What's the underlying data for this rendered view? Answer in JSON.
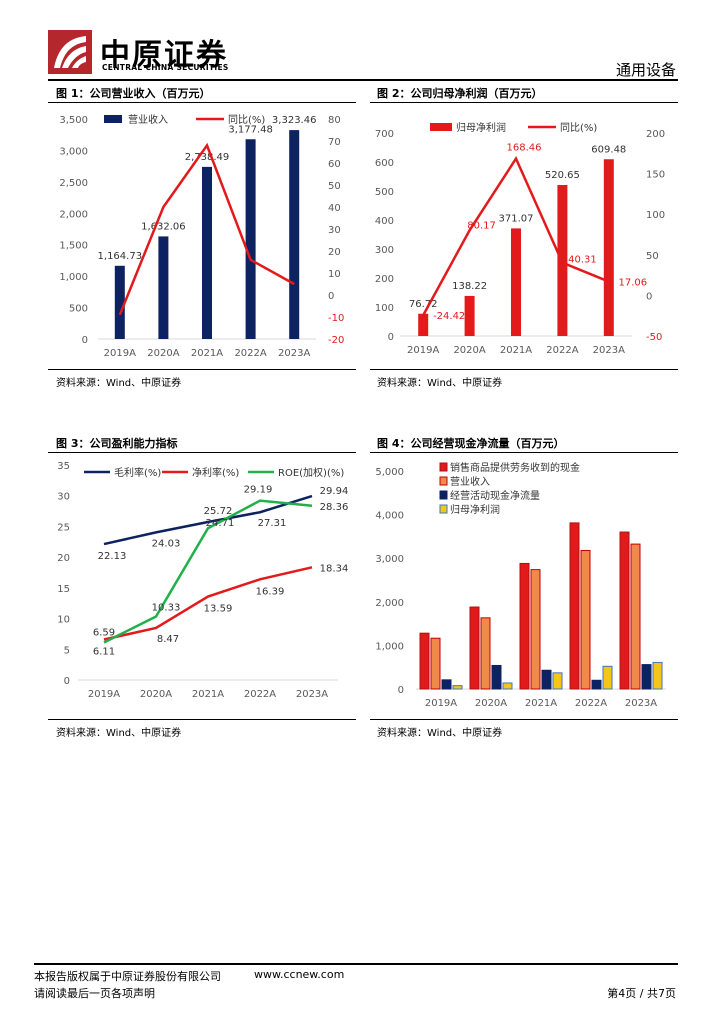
{
  "header": {
    "company_cn": "中原证券",
    "company_en": "CENTRAL CHINA SECURITIES",
    "category": "通用设备"
  },
  "figures": [
    {
      "title": "图 1：公司营业收入（百万元）",
      "source": "资料来源：Wind、中原证券"
    },
    {
      "title": "图 2：公司归母净利润（百万元）",
      "source": "资料来源：Wind、中原证券"
    },
    {
      "title": "图 3：公司盈利能力指标",
      "source": "资料来源：Wind、中原证券"
    },
    {
      "title": "图 4：公司经营现金净流量（百万元）",
      "source": "资料来源：Wind、中原证券"
    }
  ],
  "footer": {
    "copyright": "本报告版权属于中原证券股份有限公司",
    "website": "www.ccnew.com",
    "disclaimer": "请阅读最后一页各项声明",
    "page": "第4页 / 共7页"
  },
  "colors": {
    "navy": "#0D2260",
    "red": "#E31A1C",
    "green": "#22B04B",
    "orange": "#F08A4B",
    "yellow": "#F5C518",
    "axis": "#595959"
  },
  "chart_data": [
    {
      "type": "bar",
      "categories": [
        "2019A",
        "2020A",
        "2021A",
        "2022A",
        "2023A"
      ],
      "series": [
        {
          "name": "营业收入",
          "kind": "bar",
          "values": [
            1164.73,
            1632.06,
            2738.49,
            3177.48,
            3323.46
          ],
          "labels": [
            "1,164.73",
            "1,632.06",
            "2,738.49",
            "3,177.48",
            "3,323.46"
          ]
        },
        {
          "name": "同比(%)",
          "kind": "line",
          "axis": "right",
          "values": [
            -9,
            40,
            68,
            16,
            5
          ]
        }
      ],
      "ylim": [
        0,
        3500
      ],
      "yticks": [
        "0",
        "500",
        "1,000",
        "1,500",
        "2,000",
        "2,500",
        "3,000",
        "3,500"
      ],
      "y2lim": [
        -20,
        80
      ],
      "y2ticks": [
        "-20",
        "-10",
        "0",
        "10",
        "20",
        "30",
        "40",
        "50",
        "60",
        "70",
        "80"
      ]
    },
    {
      "type": "bar",
      "categories": [
        "2019A",
        "2020A",
        "2021A",
        "2022A",
        "2023A"
      ],
      "series": [
        {
          "name": "归母净利润",
          "kind": "bar",
          "values": [
            76.72,
            138.22,
            371.07,
            520.65,
            609.48
          ],
          "labels": [
            "76.72",
            "138.22",
            "371.07",
            "520.65",
            "609.48"
          ]
        },
        {
          "name": "同比(%)",
          "kind": "line",
          "axis": "right",
          "values": [
            -24.42,
            80.17,
            168.46,
            40.31,
            17.06
          ],
          "labels": [
            "-24.42",
            "80.17",
            "168.46",
            "40.31",
            "17.06"
          ]
        }
      ],
      "ylim": [
        0,
        700
      ],
      "yticks": [
        "0",
        "100",
        "200",
        "300",
        "400",
        "500",
        "600",
        "700"
      ],
      "y2lim": [
        -50,
        200
      ],
      "y2ticks": [
        "-50",
        "0",
        "50",
        "100",
        "150",
        "200"
      ]
    },
    {
      "type": "line",
      "categories": [
        "2019A",
        "2020A",
        "2021A",
        "2022A",
        "2023A"
      ],
      "series": [
        {
          "name": "毛利率(%)",
          "values": [
            22.13,
            24.03,
            25.72,
            27.31,
            29.94
          ],
          "labels": [
            "22.13",
            "24.03",
            "25.72",
            "27.31",
            "29.94"
          ]
        },
        {
          "name": "净利率(%)",
          "values": [
            6.59,
            8.47,
            13.59,
            16.39,
            18.34
          ],
          "labels": [
            "6.59",
            "8.47",
            "13.59",
            "16.39",
            "18.34"
          ]
        },
        {
          "name": "ROE(加权)(%)",
          "values": [
            6.11,
            10.33,
            24.71,
            29.19,
            28.36
          ],
          "labels": [
            "6.11",
            "10.33",
            "24.71",
            "29.19",
            "28.36"
          ]
        }
      ],
      "ylim": [
        0,
        35
      ],
      "yticks": [
        "0",
        "5",
        "10",
        "15",
        "20",
        "25",
        "30",
        "35"
      ]
    },
    {
      "type": "bar",
      "categories": [
        "2019A",
        "2020A",
        "2021A",
        "2022A",
        "2023A"
      ],
      "series": [
        {
          "name": "销售商品提供劳务收到的现金",
          "values": [
            1280,
            1880,
            2880,
            3810,
            3600
          ]
        },
        {
          "name": "营业收入",
          "values": [
            1164.73,
            1632.06,
            2738.49,
            3177.48,
            3323.46
          ]
        },
        {
          "name": "经营活动现金净流量",
          "values": [
            210,
            540,
            430,
            200,
            560
          ]
        },
        {
          "name": "归母净利润",
          "values": [
            76.72,
            138.22,
            371.07,
            520.65,
            609.48
          ]
        }
      ],
      "ylim": [
        0,
        5000
      ],
      "yticks": [
        "0",
        "1,000",
        "2,000",
        "3,000",
        "4,000",
        "5,000"
      ]
    }
  ]
}
